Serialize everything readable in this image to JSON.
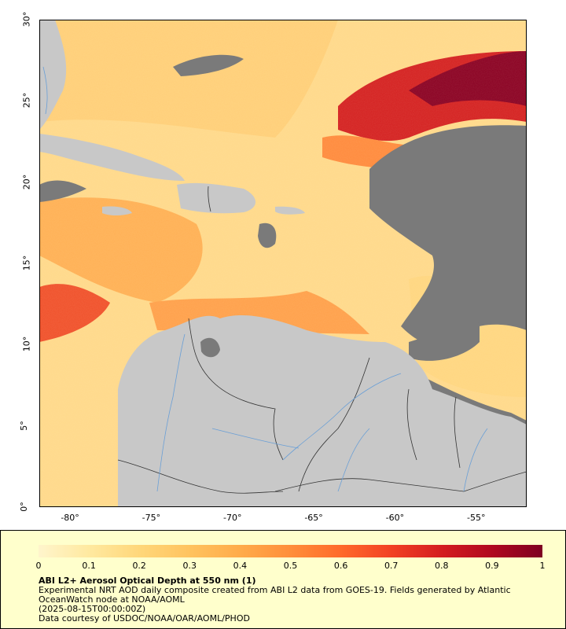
{
  "map": {
    "lat_labels": [
      "30°",
      "25°",
      "20°",
      "15°",
      "10°",
      "5°",
      "0°"
    ],
    "lon_labels": [
      "-80°",
      "-75°",
      "-70°",
      "-65°",
      "-60°",
      "-55°"
    ],
    "lat_values": [
      30,
      25,
      20,
      15,
      10,
      5,
      0
    ],
    "lon_values": [
      -80,
      -75,
      -70,
      -65,
      -60,
      -55
    ],
    "lon_range": [
      -82,
      -52
    ],
    "lat_range": [
      0,
      30
    ],
    "colors": {
      "land": "#c8c8c8",
      "missing": "#7a7a7a",
      "border": "#333333",
      "river": "#6a9fd6"
    }
  },
  "legend": {
    "colorbar_ticks": [
      "0",
      "0.1",
      "0.2",
      "0.3",
      "0.4",
      "0.5",
      "0.6",
      "0.7",
      "0.8",
      "0.9",
      "1"
    ],
    "colorbar_colors": [
      "#fff5cc",
      "#ffe9a0",
      "#ffd77a",
      "#ffc35f",
      "#ffab4a",
      "#ff8e3a",
      "#ff6a2b",
      "#f24124",
      "#d41d20",
      "#b0081f",
      "#7e0022"
    ],
    "title": "ABI L2+ Aerosol Optical Depth at 550 nm (1)",
    "line1": "Experimental NRT AOD daily composite created from ABI L2 data from GOES-19. Fields generated by Atlantic OceanWatch node at NOAA/AOML",
    "line2": "(2025-08-15T00:00:00Z)",
    "line3": "Data courtesy of USDOC/NOAA/OAR/AOML/PHOD"
  }
}
